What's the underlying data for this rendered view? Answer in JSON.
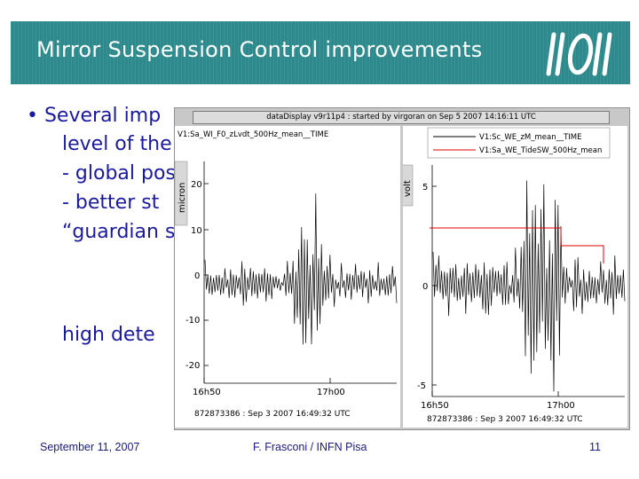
{
  "slide": {
    "title": "Mirror Suspension Control improvements",
    "bullet_lines": [
      "• Several imp",
      "level of the",
      "- global pos",
      "- better st",
      "“guardian s"
    ],
    "side_text": "high dete"
  },
  "screenshot": {
    "window_title": "dataDisplay v9r11p4 : started by virgoran on Sep 5 2007 14:16:11 UTC",
    "left_plot": {
      "plot_title": "V1:Sa_WI_F0_zLvdt_500Hz_mean__TIME",
      "ylabel": "micron",
      "yticks": [
        "20",
        "10",
        "0",
        "-10",
        "-20"
      ],
      "xticks": [
        "16h50",
        "17h00"
      ],
      "footer": "872873386 : Sep  3 2007 16:49:32 UTC"
    },
    "right_plot": {
      "legend": [
        "V1:Sc_WE_zM_mean__TIME",
        "V1:Sa_WE_TideSW_500Hz_mean"
      ],
      "ylabel": "volt",
      "yticks": [
        "5",
        "0",
        "-5"
      ],
      "xticks": [
        "16h50",
        "17h00"
      ],
      "footer": "872873386 : Sep  3 2007 16:49:32 UTC"
    }
  },
  "footer": {
    "date": "September 11, 2007",
    "author": "F. Frasconi / INFN Pisa",
    "page": "11"
  },
  "colors": {
    "header_bg": "#2d8a8c",
    "body_text": "#1a1aa0",
    "trace_black": "#000000",
    "trace_red": "#e00000"
  }
}
